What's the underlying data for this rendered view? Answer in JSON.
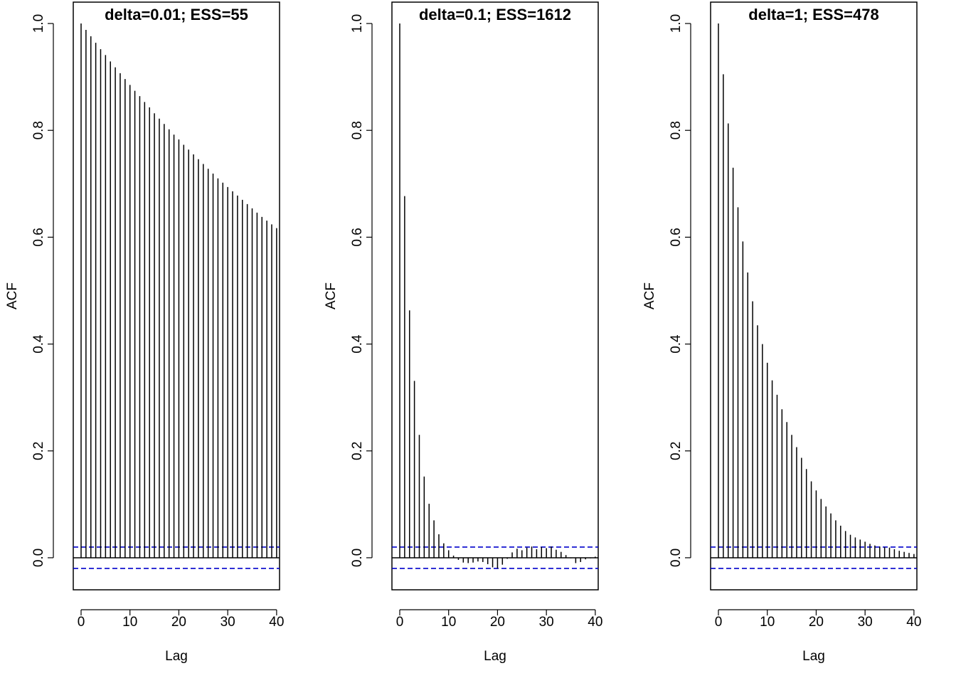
{
  "chart_data": [
    {
      "type": "bar",
      "title": "delta=0.01; ESS=55",
      "xlabel": "Lag",
      "ylabel": "ACF",
      "xlim": [
        -1.6,
        40.6
      ],
      "ylim": [
        -0.06,
        1.04
      ],
      "x_ticks": [
        "0",
        "10",
        "20",
        "30",
        "40"
      ],
      "y_ticks": [
        "0.0",
        "0.2",
        "0.4",
        "0.6",
        "0.8",
        "1.0"
      ],
      "confidence_band": [
        0.02,
        -0.02
      ],
      "confidence_color": "#0000cc",
      "lags": [
        0,
        1,
        2,
        3,
        4,
        5,
        6,
        7,
        8,
        9,
        10,
        11,
        12,
        13,
        14,
        15,
        16,
        17,
        18,
        19,
        20,
        21,
        22,
        23,
        24,
        25,
        26,
        27,
        28,
        29,
        30,
        31,
        32,
        33,
        34,
        35,
        36,
        37,
        38,
        39,
        40
      ],
      "values": [
        1.0,
        0.988,
        0.976,
        0.964,
        0.952,
        0.941,
        0.929,
        0.918,
        0.907,
        0.896,
        0.885,
        0.874,
        0.864,
        0.853,
        0.843,
        0.832,
        0.822,
        0.812,
        0.802,
        0.792,
        0.783,
        0.773,
        0.764,
        0.755,
        0.746,
        0.737,
        0.728,
        0.719,
        0.71,
        0.702,
        0.694,
        0.686,
        0.678,
        0.67,
        0.662,
        0.654,
        0.646,
        0.638,
        0.631,
        0.624,
        0.617
      ]
    },
    {
      "type": "bar",
      "title": "delta=0.1; ESS=1612",
      "xlabel": "Lag",
      "ylabel": "ACF",
      "xlim": [
        -1.6,
        40.6
      ],
      "ylim": [
        -0.06,
        1.04
      ],
      "x_ticks": [
        "0",
        "10",
        "20",
        "30",
        "40"
      ],
      "y_ticks": [
        "0.0",
        "0.2",
        "0.4",
        "0.6",
        "0.8",
        "1.0"
      ],
      "confidence_band": [
        0.02,
        -0.02
      ],
      "confidence_color": "#0000cc",
      "lags": [
        0,
        1,
        2,
        3,
        4,
        5,
        6,
        7,
        8,
        9,
        10,
        11,
        12,
        13,
        14,
        15,
        16,
        17,
        18,
        19,
        20,
        21,
        22,
        23,
        24,
        25,
        26,
        27,
        28,
        29,
        30,
        31,
        32,
        33,
        34,
        35,
        36,
        37,
        38,
        39,
        40
      ],
      "values": [
        1.0,
        0.677,
        0.463,
        0.331,
        0.23,
        0.152,
        0.101,
        0.07,
        0.044,
        0.027,
        0.014,
        0.004,
        -0.004,
        -0.009,
        -0.01,
        -0.009,
        -0.007,
        -0.008,
        -0.012,
        -0.018,
        -0.02,
        -0.013,
        -0.002,
        0.01,
        0.017,
        0.014,
        0.019,
        0.021,
        0.016,
        0.02,
        0.018,
        0.021,
        0.015,
        0.011,
        0.005,
        -0.001,
        -0.01,
        -0.008,
        -0.003,
        -0.001,
        0.002
      ]
    },
    {
      "type": "bar",
      "title": "delta=1; ESS=478",
      "xlabel": "Lag",
      "ylabel": "ACF",
      "xlim": [
        -1.6,
        40.6
      ],
      "ylim": [
        -0.06,
        1.04
      ],
      "x_ticks": [
        "0",
        "10",
        "20",
        "30",
        "40"
      ],
      "y_ticks": [
        "0.0",
        "0.2",
        "0.4",
        "0.6",
        "0.8",
        "1.0"
      ],
      "confidence_band": [
        0.02,
        -0.02
      ],
      "confidence_color": "#0000cc",
      "lags": [
        0,
        1,
        2,
        3,
        4,
        5,
        6,
        7,
        8,
        9,
        10,
        11,
        12,
        13,
        14,
        15,
        16,
        17,
        18,
        19,
        20,
        21,
        22,
        23,
        24,
        25,
        26,
        27,
        28,
        29,
        30,
        31,
        32,
        33,
        34,
        35,
        36,
        37,
        38,
        39,
        40
      ],
      "values": [
        1.0,
        0.905,
        0.813,
        0.73,
        0.656,
        0.592,
        0.534,
        0.48,
        0.435,
        0.4,
        0.365,
        0.332,
        0.305,
        0.278,
        0.254,
        0.23,
        0.207,
        0.187,
        0.166,
        0.143,
        0.126,
        0.11,
        0.096,
        0.083,
        0.07,
        0.06,
        0.05,
        0.043,
        0.038,
        0.034,
        0.03,
        0.026,
        0.023,
        0.021,
        0.02,
        0.019,
        0.016,
        0.013,
        0.011,
        0.009,
        0.007
      ]
    }
  ]
}
